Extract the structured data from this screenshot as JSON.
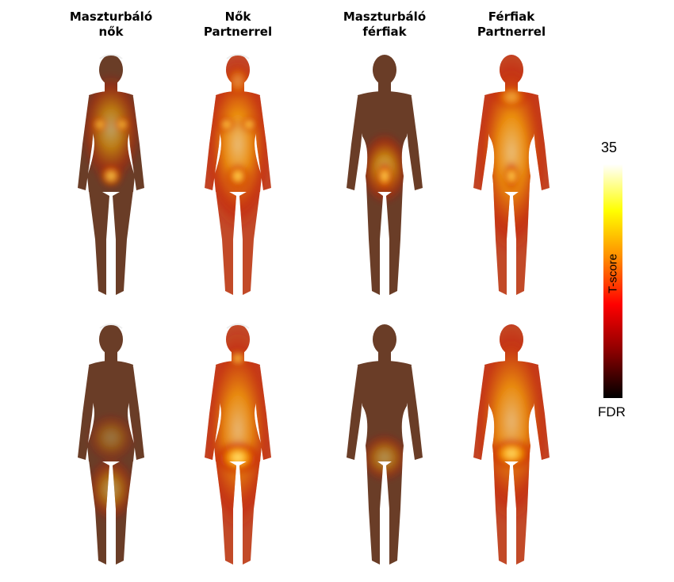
{
  "columns": [
    {
      "line1": "Maszturbáló",
      "line2": "nők"
    },
    {
      "line1": "Nők",
      "line2": "Partnerrel"
    },
    {
      "line1": "Maszturbáló",
      "line2": "férfiak"
    },
    {
      "line1": "Férfiak",
      "line2": "Partnerrel"
    }
  ],
  "rows": [
    "front",
    "back"
  ],
  "colorbar": {
    "max_label": "35",
    "min_label": "FDR",
    "title": "T-score",
    "colors": [
      "#000000",
      "#8b0000",
      "#ff0000",
      "#ff8c00",
      "#ffff00",
      "#ffffff"
    ]
  },
  "colors": {
    "skin": "#d8a07c",
    "insignificant_skin": "#6a3d27",
    "heat_low": "#c81e0a",
    "heat_high": "#fff4a0"
  }
}
